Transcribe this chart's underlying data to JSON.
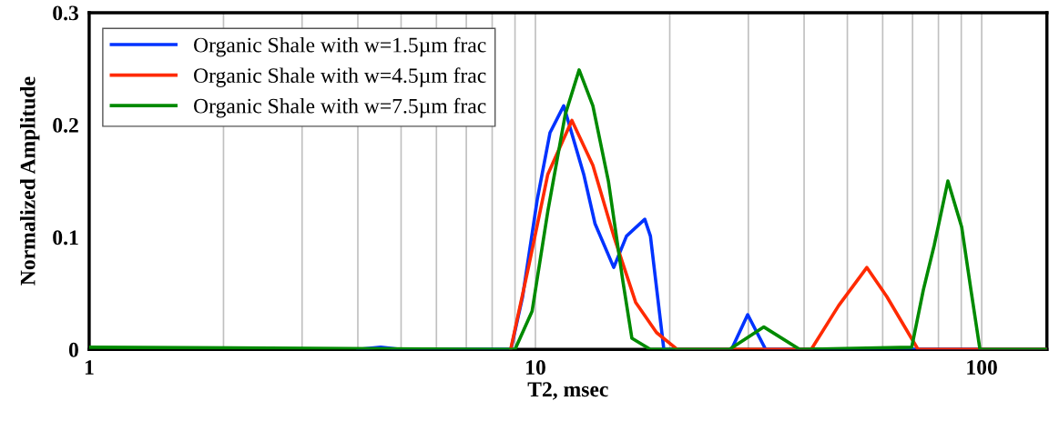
{
  "chart_data": {
    "type": "line",
    "xlabel": "T2, msec",
    "ylabel": "Normalized Amplitude",
    "log": "x",
    "xlim": [
      1,
      140
    ],
    "xticks": [
      1,
      10,
      100
    ],
    "ylim": [
      0,
      0.3
    ],
    "yticks": [
      0,
      0.1,
      0.2,
      0.3
    ],
    "grid": "x",
    "legend": "top left",
    "marker": "none",
    "line_style": "solid",
    "series": [
      {
        "name": "Organic Shale with w=1.5µm frac",
        "color": "#0033ff",
        "x": [
          4.0,
          4.5,
          5.0,
          8.81,
          9.36,
          10.1,
          10.78,
          11.57,
          12.83,
          13.6,
          14.98,
          16.0,
          17.58,
          18.1,
          19.4,
          27.5,
          29.9,
          32.8,
          140
        ],
        "values": [
          0,
          0.002,
          0,
          0,
          0.047,
          0.134,
          0.193,
          0.217,
          0.156,
          0.112,
          0.073,
          0.101,
          0.116,
          0.101,
          0,
          0,
          0.031,
          0,
          0
        ]
      },
      {
        "name": "Organic Shale with w=4.5µm frac",
        "color": "#ff2a00",
        "x": [
          8.8,
          9.67,
          10.66,
          12.07,
          13.45,
          14.98,
          16.77,
          18.68,
          20.8,
          41.5,
          47.8,
          55.3,
          61.3,
          72.0,
          140
        ],
        "values": [
          0,
          0.075,
          0.156,
          0.204,
          0.164,
          0.101,
          0.042,
          0.015,
          0,
          0,
          0.039,
          0.073,
          0.047,
          0,
          0
        ]
      },
      {
        "name": "Organic Shale with w=7.5µm frac",
        "color": "#008a00",
        "x": [
          1,
          9.0,
          9.83,
          10.66,
          11.66,
          12.53,
          13.45,
          14.57,
          15.7,
          16.45,
          18.1,
          27.2,
          32.5,
          39.1,
          69.7,
          74.0,
          78.3,
          84.0,
          90.2,
          94.6,
          99.1,
          140
        ],
        "values": [
          0.002,
          0,
          0.034,
          0.123,
          0.209,
          0.249,
          0.217,
          0.15,
          0.061,
          0.01,
          0,
          0,
          0.02,
          0,
          0.002,
          0.053,
          0.093,
          0.15,
          0.109,
          0.053,
          0,
          0
        ]
      }
    ]
  }
}
